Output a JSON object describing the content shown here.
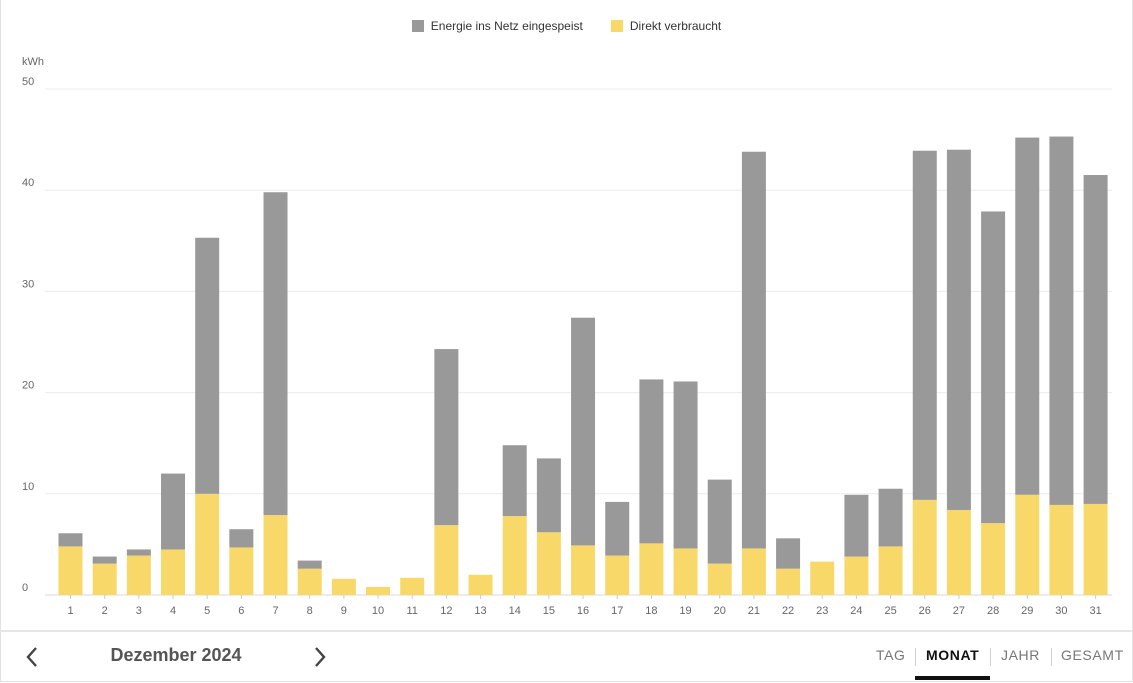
{
  "colors": {
    "fed_in": "#999999",
    "direct": "#f9d86a",
    "grid": "#ececec",
    "axis_text": "#666666",
    "active_tab": "#111111"
  },
  "legend": {
    "fed_in_label": "Energie ins Netz eingespeist",
    "direct_label": "Direkt verbraucht"
  },
  "navigation": {
    "period_label": "Dezember 2024",
    "prev_icon": "chevron-left-icon",
    "next_icon": "chevron-right-icon"
  },
  "tabs": [
    {
      "label": "TAG",
      "active": false
    },
    {
      "label": "MONAT",
      "active": true
    },
    {
      "label": "JAHR",
      "active": false
    },
    {
      "label": "GESAMT",
      "active": false
    }
  ],
  "chart_data": {
    "type": "bar",
    "stacked": true,
    "ylabel": "kWh",
    "ylim": [
      0,
      50
    ],
    "yticks": [
      0,
      10,
      20,
      30,
      40,
      50
    ],
    "grid": true,
    "legend_position": "top-center",
    "categories": [
      "1",
      "2",
      "3",
      "4",
      "5",
      "6",
      "7",
      "8",
      "9",
      "10",
      "11",
      "12",
      "13",
      "14",
      "15",
      "16",
      "17",
      "18",
      "19",
      "20",
      "21",
      "22",
      "23",
      "24",
      "25",
      "26",
      "27",
      "28",
      "29",
      "30",
      "31"
    ],
    "series": [
      {
        "name": "Direkt verbraucht",
        "values": [
          4.8,
          3.1,
          3.9,
          4.5,
          10.0,
          4.7,
          7.9,
          2.6,
          1.6,
          0.8,
          1.7,
          6.9,
          2.0,
          7.8,
          6.2,
          4.9,
          3.9,
          5.1,
          4.6,
          3.1,
          4.6,
          2.6,
          3.3,
          3.8,
          4.8,
          9.4,
          8.4,
          7.1,
          9.9,
          8.9,
          9.0
        ]
      },
      {
        "name": "Energie ins Netz eingespeist",
        "values": [
          1.3,
          0.7,
          0.6,
          7.5,
          25.3,
          1.8,
          31.9,
          0.8,
          0,
          0,
          0,
          17.4,
          0,
          7.0,
          7.3,
          22.5,
          5.3,
          16.2,
          16.5,
          8.3,
          39.2,
          3.0,
          0,
          6.1,
          5.7,
          34.5,
          35.6,
          30.8,
          35.3,
          36.4,
          32.5
        ]
      }
    ]
  }
}
